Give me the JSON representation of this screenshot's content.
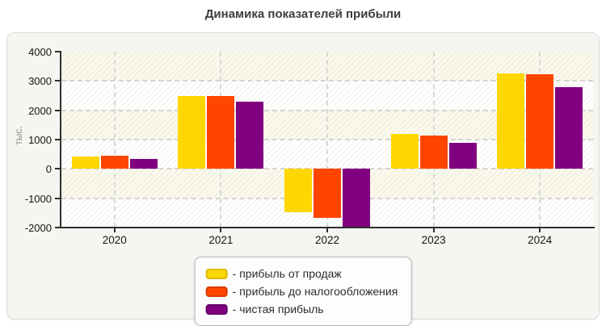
{
  "title": "Динамика показателей прибыли",
  "chart_data": {
    "type": "bar",
    "title": "Динамика показателей прибыли",
    "ylabel": "тыс.",
    "xlabel": "",
    "categories": [
      "2020",
      "2021",
      "2022",
      "2023",
      "2024"
    ],
    "series": [
      {
        "name": "прибыль от продаж",
        "color": "#ffd700",
        "border_color": "#dbb800",
        "values": [
          420,
          2500,
          -1480,
          1180,
          3250
        ]
      },
      {
        "name": "прибыль до налогообложения",
        "color": "#ff4500",
        "border_color": "#d93a00",
        "values": [
          440,
          2500,
          -1680,
          1150,
          3220
        ]
      },
      {
        "name": "чистая прибыль",
        "color": "#800080",
        "border_color": "#640064",
        "values": [
          340,
          2290,
          -1960,
          890,
          2790
        ]
      }
    ],
    "ylim": [
      -2000,
      4000
    ],
    "yticks": [
      4000,
      3000,
      2000,
      1000,
      0,
      -1000,
      -2000
    ],
    "grid": true,
    "legend_position": "bottom-center",
    "legend_prefix": "- ",
    "plot_band_colors": [
      "#faf9ec",
      "#ffffff"
    ]
  }
}
